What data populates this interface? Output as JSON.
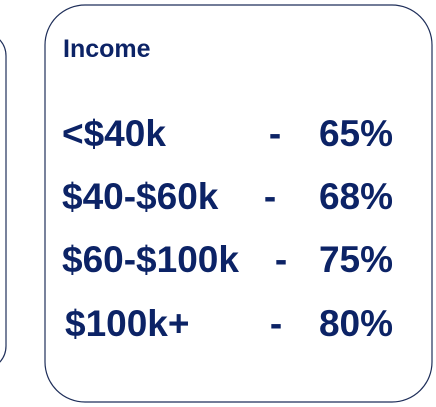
{
  "title": "Income",
  "separator": "-",
  "rows": [
    {
      "label": "<$40k",
      "value": "65%"
    },
    {
      "label": "$40-$60k",
      "value": "68%"
    },
    {
      "label": "$60-$100k",
      "value": "75%"
    },
    {
      "label": "$100k+",
      "value": "80%"
    }
  ]
}
